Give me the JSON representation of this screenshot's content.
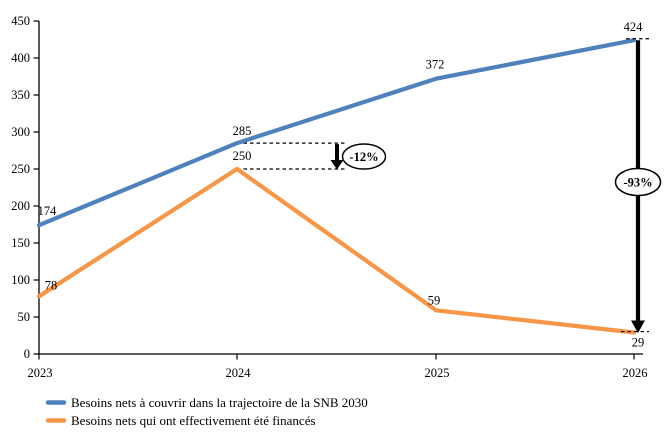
{
  "chart_data": {
    "type": "line",
    "title": "",
    "xlabel": "",
    "ylabel": "",
    "categories": [
      "2023",
      "2024",
      "2025",
      "2026"
    ],
    "series": [
      {
        "name": "Besoins nets à couvrir dans la trajectoire de la SNB 2030",
        "color": "#4F81BD",
        "values": [
          174,
          285,
          372,
          424
        ]
      },
      {
        "name": "Besoins nets qui ont effectivement été financés",
        "color": "#F79646",
        "values": [
          78,
          250,
          59,
          29
        ]
      }
    ],
    "ylim": [
      0,
      450
    ],
    "y_ticks": [
      0,
      50,
      100,
      150,
      200,
      250,
      300,
      350,
      400,
      450
    ],
    "grid": false,
    "legend_position": "bottom-left",
    "annotations": [
      {
        "label": "-12%",
        "at_category": "2024",
        "from_value": 285,
        "to_value": 250
      },
      {
        "label": "-93%",
        "at_category": "2026",
        "from_value": 424,
        "to_value": 29
      }
    ],
    "axis_color": "#000000",
    "annotation_color": "#000000"
  }
}
